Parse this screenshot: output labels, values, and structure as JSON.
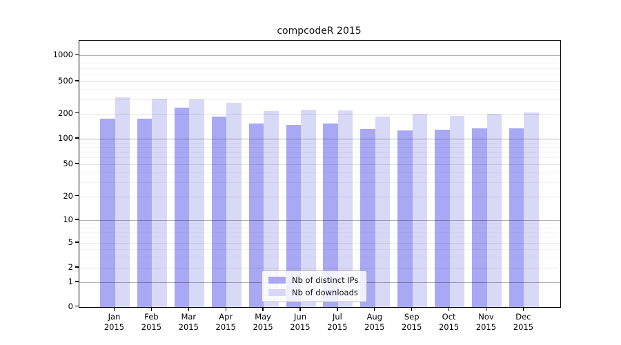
{
  "title": "compcodeR 2015",
  "chart_data": {
    "type": "bar",
    "title": "compcodeR 2015",
    "months": [
      "Jan",
      "Feb",
      "Mar",
      "Apr",
      "May",
      "Jun",
      "Jul",
      "Aug",
      "Sep",
      "Oct",
      "Nov",
      "Dec"
    ],
    "year_label": "2015",
    "series": [
      {
        "name": "Nb of distinct IPs",
        "color": "#a8a8f5",
        "values": [
          175,
          175,
          235,
          184,
          152,
          147,
          151,
          130,
          125,
          127,
          132,
          133
        ]
      },
      {
        "name": "Nb of downloads",
        "color": "#d8d8f7",
        "values": [
          315,
          307,
          298,
          274,
          213,
          222,
          218,
          185,
          197,
          186,
          200,
          205
        ]
      }
    ],
    "y_ticks": [
      0,
      1,
      2,
      5,
      10,
      20,
      50,
      100,
      200,
      500,
      1000
    ],
    "yscale": "log-like (0,1,2,5...1000)",
    "ylim": [
      0,
      1400
    ],
    "grid": true,
    "legend_position": "bottom-center"
  }
}
